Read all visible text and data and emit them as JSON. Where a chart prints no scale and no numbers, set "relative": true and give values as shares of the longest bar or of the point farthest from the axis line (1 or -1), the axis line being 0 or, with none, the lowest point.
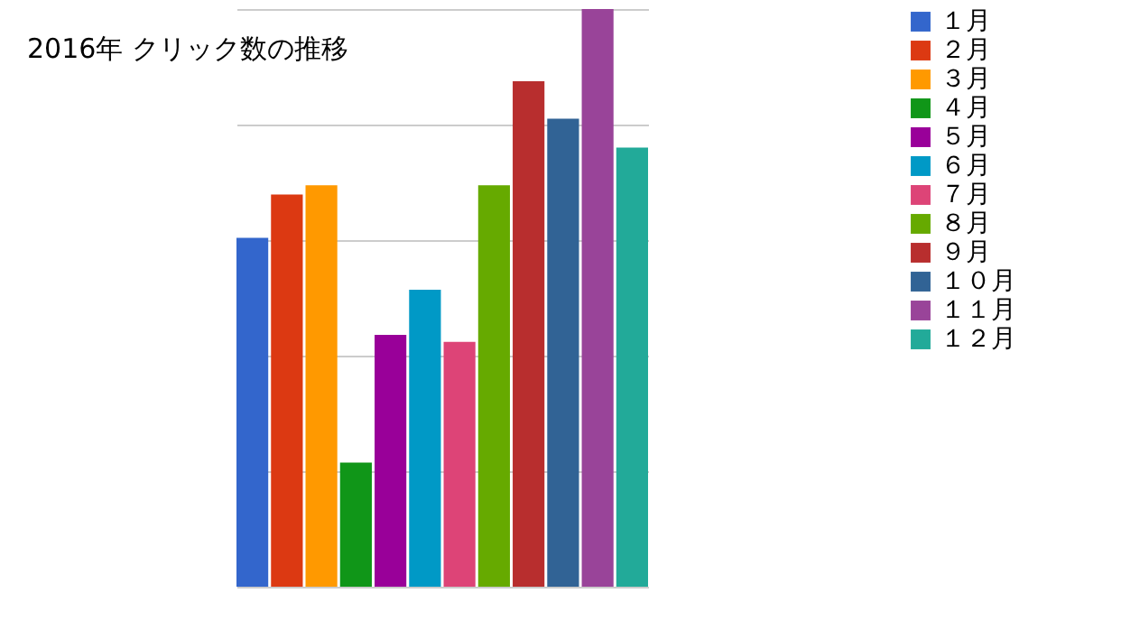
{
  "chart_data": {
    "type": "bar",
    "title": "2016年 クリック数の推移",
    "relative": true,
    "grid": "y",
    "legend": "right",
    "categories": [
      null
    ],
    "series": [
      {
        "name": "１月",
        "color": "#3366cc",
        "values": [
          0.604
        ]
      },
      {
        "name": "２月",
        "color": "#dc3912",
        "values": [
          0.679
        ]
      },
      {
        "name": "３月",
        "color": "#ff9900",
        "values": [
          0.695
        ]
      },
      {
        "name": "４月",
        "color": "#109618",
        "values": [
          0.215
        ]
      },
      {
        "name": "５月",
        "color": "#990099",
        "values": [
          0.436
        ]
      },
      {
        "name": "６月",
        "color": "#0099c6",
        "values": [
          0.514
        ]
      },
      {
        "name": "７月",
        "color": "#dd4477",
        "values": [
          0.424
        ]
      },
      {
        "name": "８月",
        "color": "#66aa00",
        "values": [
          0.695
        ]
      },
      {
        "name": "９月",
        "color": "#b82e2e",
        "values": [
          0.875
        ]
      },
      {
        "name": "１０月",
        "color": "#316395",
        "values": [
          0.81
        ]
      },
      {
        "name": "１１月",
        "color": "#994499",
        "values": [
          1
        ]
      },
      {
        "name": "１２月",
        "color": "#22aa99",
        "values": [
          0.76
        ]
      }
    ]
  }
}
